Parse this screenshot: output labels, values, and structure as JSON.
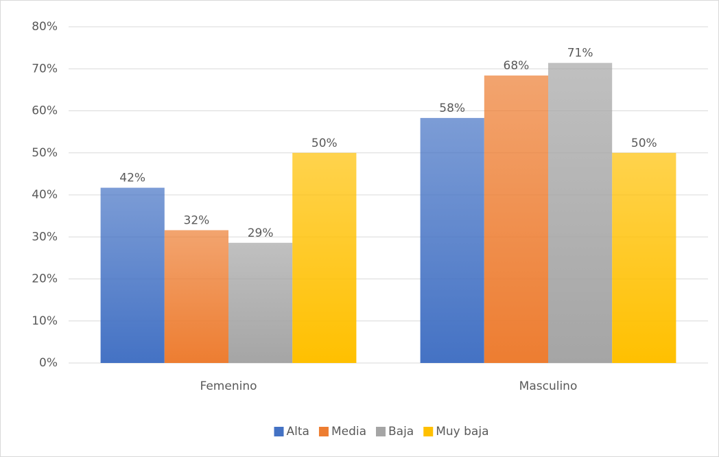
{
  "chart_data": {
    "type": "bar",
    "categories": [
      "Femenino",
      "Masculino"
    ],
    "series": [
      {
        "name": "Alta",
        "color": "#4472c4",
        "values": [
          41.7,
          58.3
        ],
        "value_labels": [
          "42%",
          "58%"
        ]
      },
      {
        "name": "Media",
        "color": "#ed7d31",
        "values": [
          31.6,
          68.4
        ],
        "value_labels": [
          "32%",
          "68%"
        ]
      },
      {
        "name": "Baja",
        "color": "#a5a5a5",
        "values": [
          28.6,
          71.4
        ],
        "value_labels": [
          "29%",
          "71%"
        ]
      },
      {
        "name": "Muy baja",
        "color": "#ffc000",
        "values": [
          50,
          50
        ],
        "value_labels": [
          "50%",
          "50%"
        ]
      }
    ],
    "ylim": [
      0,
      80
    ],
    "yticks": [
      {
        "value": 0,
        "label": "0%"
      },
      {
        "value": 10,
        "label": "10%"
      },
      {
        "value": 20,
        "label": "20%"
      },
      {
        "value": 30,
        "label": "30%"
      },
      {
        "value": 40,
        "label": "40%"
      },
      {
        "value": 50,
        "label": "50%"
      },
      {
        "value": 60,
        "label": "60%"
      },
      {
        "value": 70,
        "label": "70%"
      },
      {
        "value": 80,
        "label": "80%"
      }
    ],
    "grid": true,
    "legend": "bottom"
  }
}
